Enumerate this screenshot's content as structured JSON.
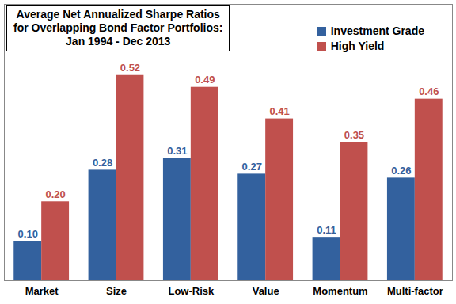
{
  "chart_data": {
    "type": "bar",
    "title": "Average Net Annualized Sharpe Ratios\nfor Overlapping Bond Factor Portfolios:\nJan 1994 - Dec 2013",
    "categories": [
      "Market",
      "Size",
      "Low-Risk",
      "Value",
      "Momentum",
      "Multi-factor"
    ],
    "series": [
      {
        "name": "Investment Grade",
        "color": "#33619e",
        "values": [
          0.1,
          0.28,
          0.31,
          0.27,
          0.11,
          0.26
        ],
        "value_labels": [
          "0.10",
          "0.28",
          "0.31",
          "0.27",
          "0.11",
          "0.26"
        ]
      },
      {
        "name": "High Yield",
        "color": "#c0504d",
        "values": [
          0.2,
          0.52,
          0.49,
          0.41,
          0.35,
          0.46
        ],
        "value_labels": [
          "0.20",
          "0.52",
          "0.49",
          "0.41",
          "0.35",
          "0.46"
        ]
      }
    ],
    "ylim": [
      0,
      0.7
    ],
    "yticks": [],
    "tick_labels": "x",
    "data_labels": true,
    "legend": "top-right",
    "grid": false
  }
}
